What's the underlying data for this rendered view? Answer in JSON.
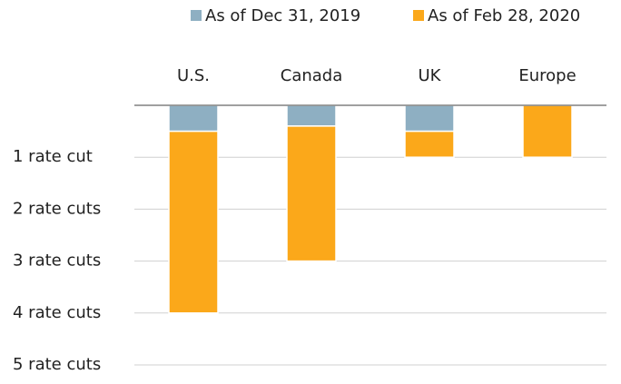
{
  "chart_data": {
    "type": "bar",
    "stacked": true,
    "y_inverted": true,
    "legend": "top-right",
    "grid": true,
    "categories": [
      "U.S.",
      "Canada",
      "UK",
      "Europe"
    ],
    "series": [
      {
        "name": "As of Dec 31, 2019",
        "color": "#8eafc2",
        "values": [
          0.5,
          0.4,
          0.5,
          0
        ]
      },
      {
        "name": "As of Feb 28, 2020",
        "color": "#fba81a",
        "values": [
          3.5,
          2.6,
          0.5,
          1.0
        ]
      }
    ],
    "ylim": [
      0,
      5
    ],
    "yticks": [
      {
        "value": 1,
        "label": "1 rate cut"
      },
      {
        "value": 2,
        "label": "2 rate cuts"
      },
      {
        "value": 3,
        "label": "3 rate cuts"
      },
      {
        "value": 4,
        "label": "4 rate cuts"
      },
      {
        "value": 5,
        "label": "5 rate cuts"
      }
    ]
  }
}
